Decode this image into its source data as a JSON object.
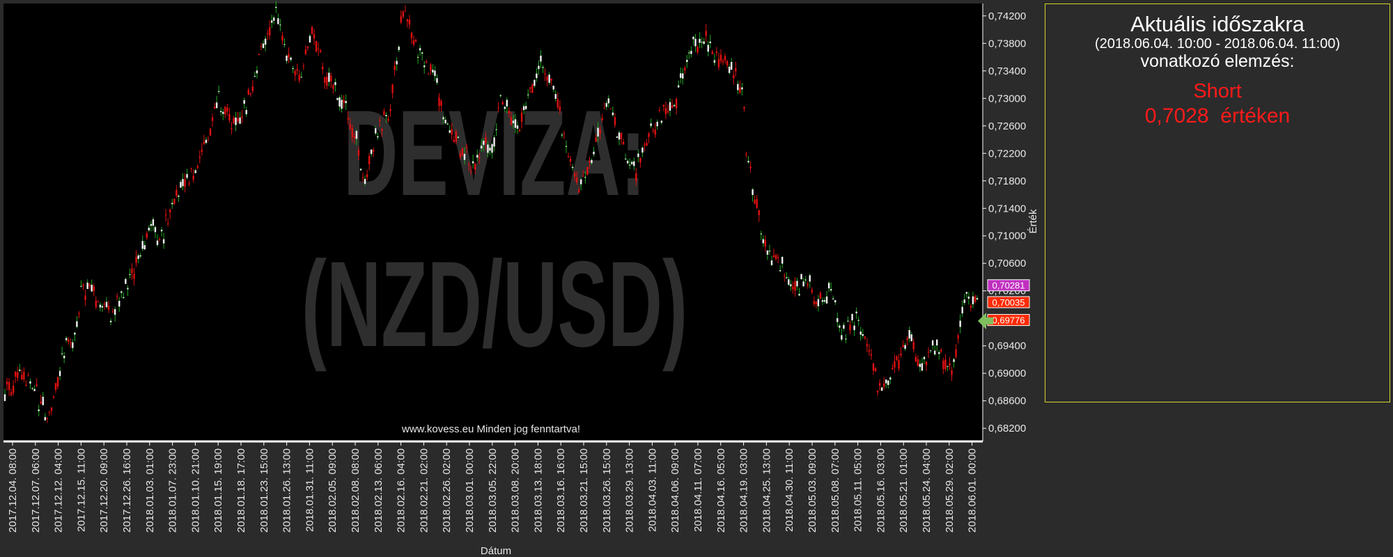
{
  "chart_data": {
    "type": "candlestick",
    "watermark": [
      "DEVIZA:",
      "(NZD/USD)"
    ],
    "footer": "www.kovess.eu Minden jog fenntartva!",
    "xlabel": "Dátum",
    "ylabel": "Érték",
    "ylim": [
      0.6805,
      0.7435
    ],
    "y_ticks": [
      "0,74200",
      "0,73800",
      "0,73400",
      "0,73000",
      "0,72600",
      "0,72200",
      "0,71800",
      "0,71400",
      "0,71000",
      "0,70600",
      "0,70200",
      "0,69800",
      "0,69400",
      "0,69000",
      "0,68600",
      "0,68200"
    ],
    "y_tick_values": [
      0.742,
      0.738,
      0.734,
      0.73,
      0.726,
      0.722,
      0.718,
      0.714,
      0.71,
      0.706,
      0.702,
      0.698,
      0.694,
      0.69,
      0.686,
      0.682
    ],
    "x_ticks": [
      "2017.12.04. 08:00",
      "2017.12.07. 06:00",
      "2017.12.12. 04:00",
      "2017.12.15. 11:00",
      "2017.12.20. 09:00",
      "2017.12.26. 16:00",
      "2018.01.03. 01:00",
      "2018.01.07. 23:00",
      "2018.01.10. 21:00",
      "2018.01.15. 19:00",
      "2018.01.18. 17:00",
      "2018.01.23. 15:00",
      "2018.01.26. 13:00",
      "2018.01.31. 11:00",
      "2018.02.05. 09:00",
      "2018.02.08. 08:00",
      "2018.02.13. 06:00",
      "2018.02.16. 04:00",
      "2018.02.21. 02:00",
      "2018.02.26. 02:00",
      "2018.03.01. 00:00",
      "2018.03.05. 22:00",
      "2018.03.08. 20:00",
      "2018.03.13. 18:00",
      "2018.03.16. 16:00",
      "2018.03.21. 15:00",
      "2018.03.26. 15:00",
      "2018.03.29. 13:00",
      "2018.04.03. 11:00",
      "2018.04.06. 09:00",
      "2018.04.11. 07:00",
      "2018.04.16. 05:00",
      "2018.04.19. 03:00",
      "2018.04.25. 13:00",
      "2018.04.30. 11:00",
      "2018.05.03. 09:00",
      "2018.05.08. 07:00",
      "2018.05.11. 05:00",
      "2018.05.16. 03:00",
      "2018.05.21. 01:00",
      "2018.05.24. 04:00",
      "2018.05.29. 02:00",
      "2018.06.01. 00:00"
    ],
    "price_path": [
      [
        0,
        0.6875
      ],
      [
        0.02,
        0.6905
      ],
      [
        0.035,
        0.686
      ],
      [
        0.045,
        0.6832
      ],
      [
        0.06,
        0.6935
      ],
      [
        0.07,
        0.695
      ],
      [
        0.08,
        0.7025
      ],
      [
        0.095,
        0.701
      ],
      [
        0.105,
        0.6985
      ],
      [
        0.125,
        0.7025
      ],
      [
        0.14,
        0.7065
      ],
      [
        0.15,
        0.712
      ],
      [
        0.16,
        0.709
      ],
      [
        0.17,
        0.714
      ],
      [
        0.185,
        0.7175
      ],
      [
        0.2,
        0.721
      ],
      [
        0.215,
        0.7275
      ],
      [
        0.22,
        0.73
      ],
      [
        0.235,
        0.726
      ],
      [
        0.25,
        0.7295
      ],
      [
        0.26,
        0.735
      ],
      [
        0.278,
        0.742
      ],
      [
        0.29,
        0.736
      ],
      [
        0.305,
        0.7335
      ],
      [
        0.318,
        0.74
      ],
      [
        0.33,
        0.733
      ],
      [
        0.345,
        0.73
      ],
      [
        0.36,
        0.725
      ],
      [
        0.37,
        0.718
      ],
      [
        0.38,
        0.724
      ],
      [
        0.395,
        0.7275
      ],
      [
        0.41,
        0.743
      ],
      [
        0.425,
        0.737
      ],
      [
        0.44,
        0.7345
      ],
      [
        0.45,
        0.728
      ],
      [
        0.465,
        0.724
      ],
      [
        0.48,
        0.72
      ],
      [
        0.495,
        0.724
      ],
      [
        0.5,
        0.722
      ],
      [
        0.51,
        0.73
      ],
      [
        0.53,
        0.726
      ],
      [
        0.55,
        0.735
      ],
      [
        0.565,
        0.731
      ],
      [
        0.575,
        0.724
      ],
      [
        0.59,
        0.717
      ],
      [
        0.6,
        0.72
      ],
      [
        0.62,
        0.729
      ],
      [
        0.635,
        0.723
      ],
      [
        0.648,
        0.719
      ],
      [
        0.66,
        0.724
      ],
      [
        0.675,
        0.727
      ],
      [
        0.69,
        0.73
      ],
      [
        0.7,
        0.735
      ],
      [
        0.705,
        0.737
      ],
      [
        0.72,
        0.739
      ],
      [
        0.735,
        0.736
      ],
      [
        0.75,
        0.7335
      ],
      [
        0.76,
        0.73
      ],
      [
        0.762,
        0.722
      ],
      [
        0.775,
        0.713
      ],
      [
        0.785,
        0.708
      ],
      [
        0.8,
        0.706
      ],
      [
        0.812,
        0.702
      ],
      [
        0.825,
        0.704
      ],
      [
        0.835,
        0.7
      ],
      [
        0.85,
        0.702
      ],
      [
        0.86,
        0.696
      ],
      [
        0.875,
        0.698
      ],
      [
        0.885,
        0.694
      ],
      [
        0.9,
        0.687
      ],
      [
        0.91,
        0.689
      ],
      [
        0.922,
        0.693
      ],
      [
        0.93,
        0.696
      ],
      [
        0.94,
        0.691
      ],
      [
        0.955,
        0.694
      ],
      [
        0.965,
        0.692
      ],
      [
        0.975,
        0.69
      ],
      [
        0.983,
        0.698
      ],
      [
        0.99,
        0.701
      ],
      [
        1.0,
        0.6995
      ]
    ],
    "markers": [
      {
        "label": "0,70281",
        "value": 0.70281,
        "color": "#c030c0"
      },
      {
        "label": "0,70035",
        "value": 0.70035,
        "color": "#ff2a00"
      },
      {
        "label": "0,69776",
        "value": 0.69776,
        "color": "#ff2a00"
      }
    ],
    "colors": {
      "up": "#f2f2f2",
      "down": "#e01010",
      "up_wick": "#22aa22",
      "bg": "#000000",
      "frame": "#2b2b2b",
      "axis_line": "#ffffff",
      "arrow": "#7fbf5f"
    }
  },
  "panel": {
    "title": "Aktuális időszakra",
    "range": "(2018.06.04. 10:00 - 2018.06.04. 11:00)",
    "subtitle": "vonatkozó elemzés:",
    "signal": "Short",
    "value_line": "0,7028  értéken"
  }
}
